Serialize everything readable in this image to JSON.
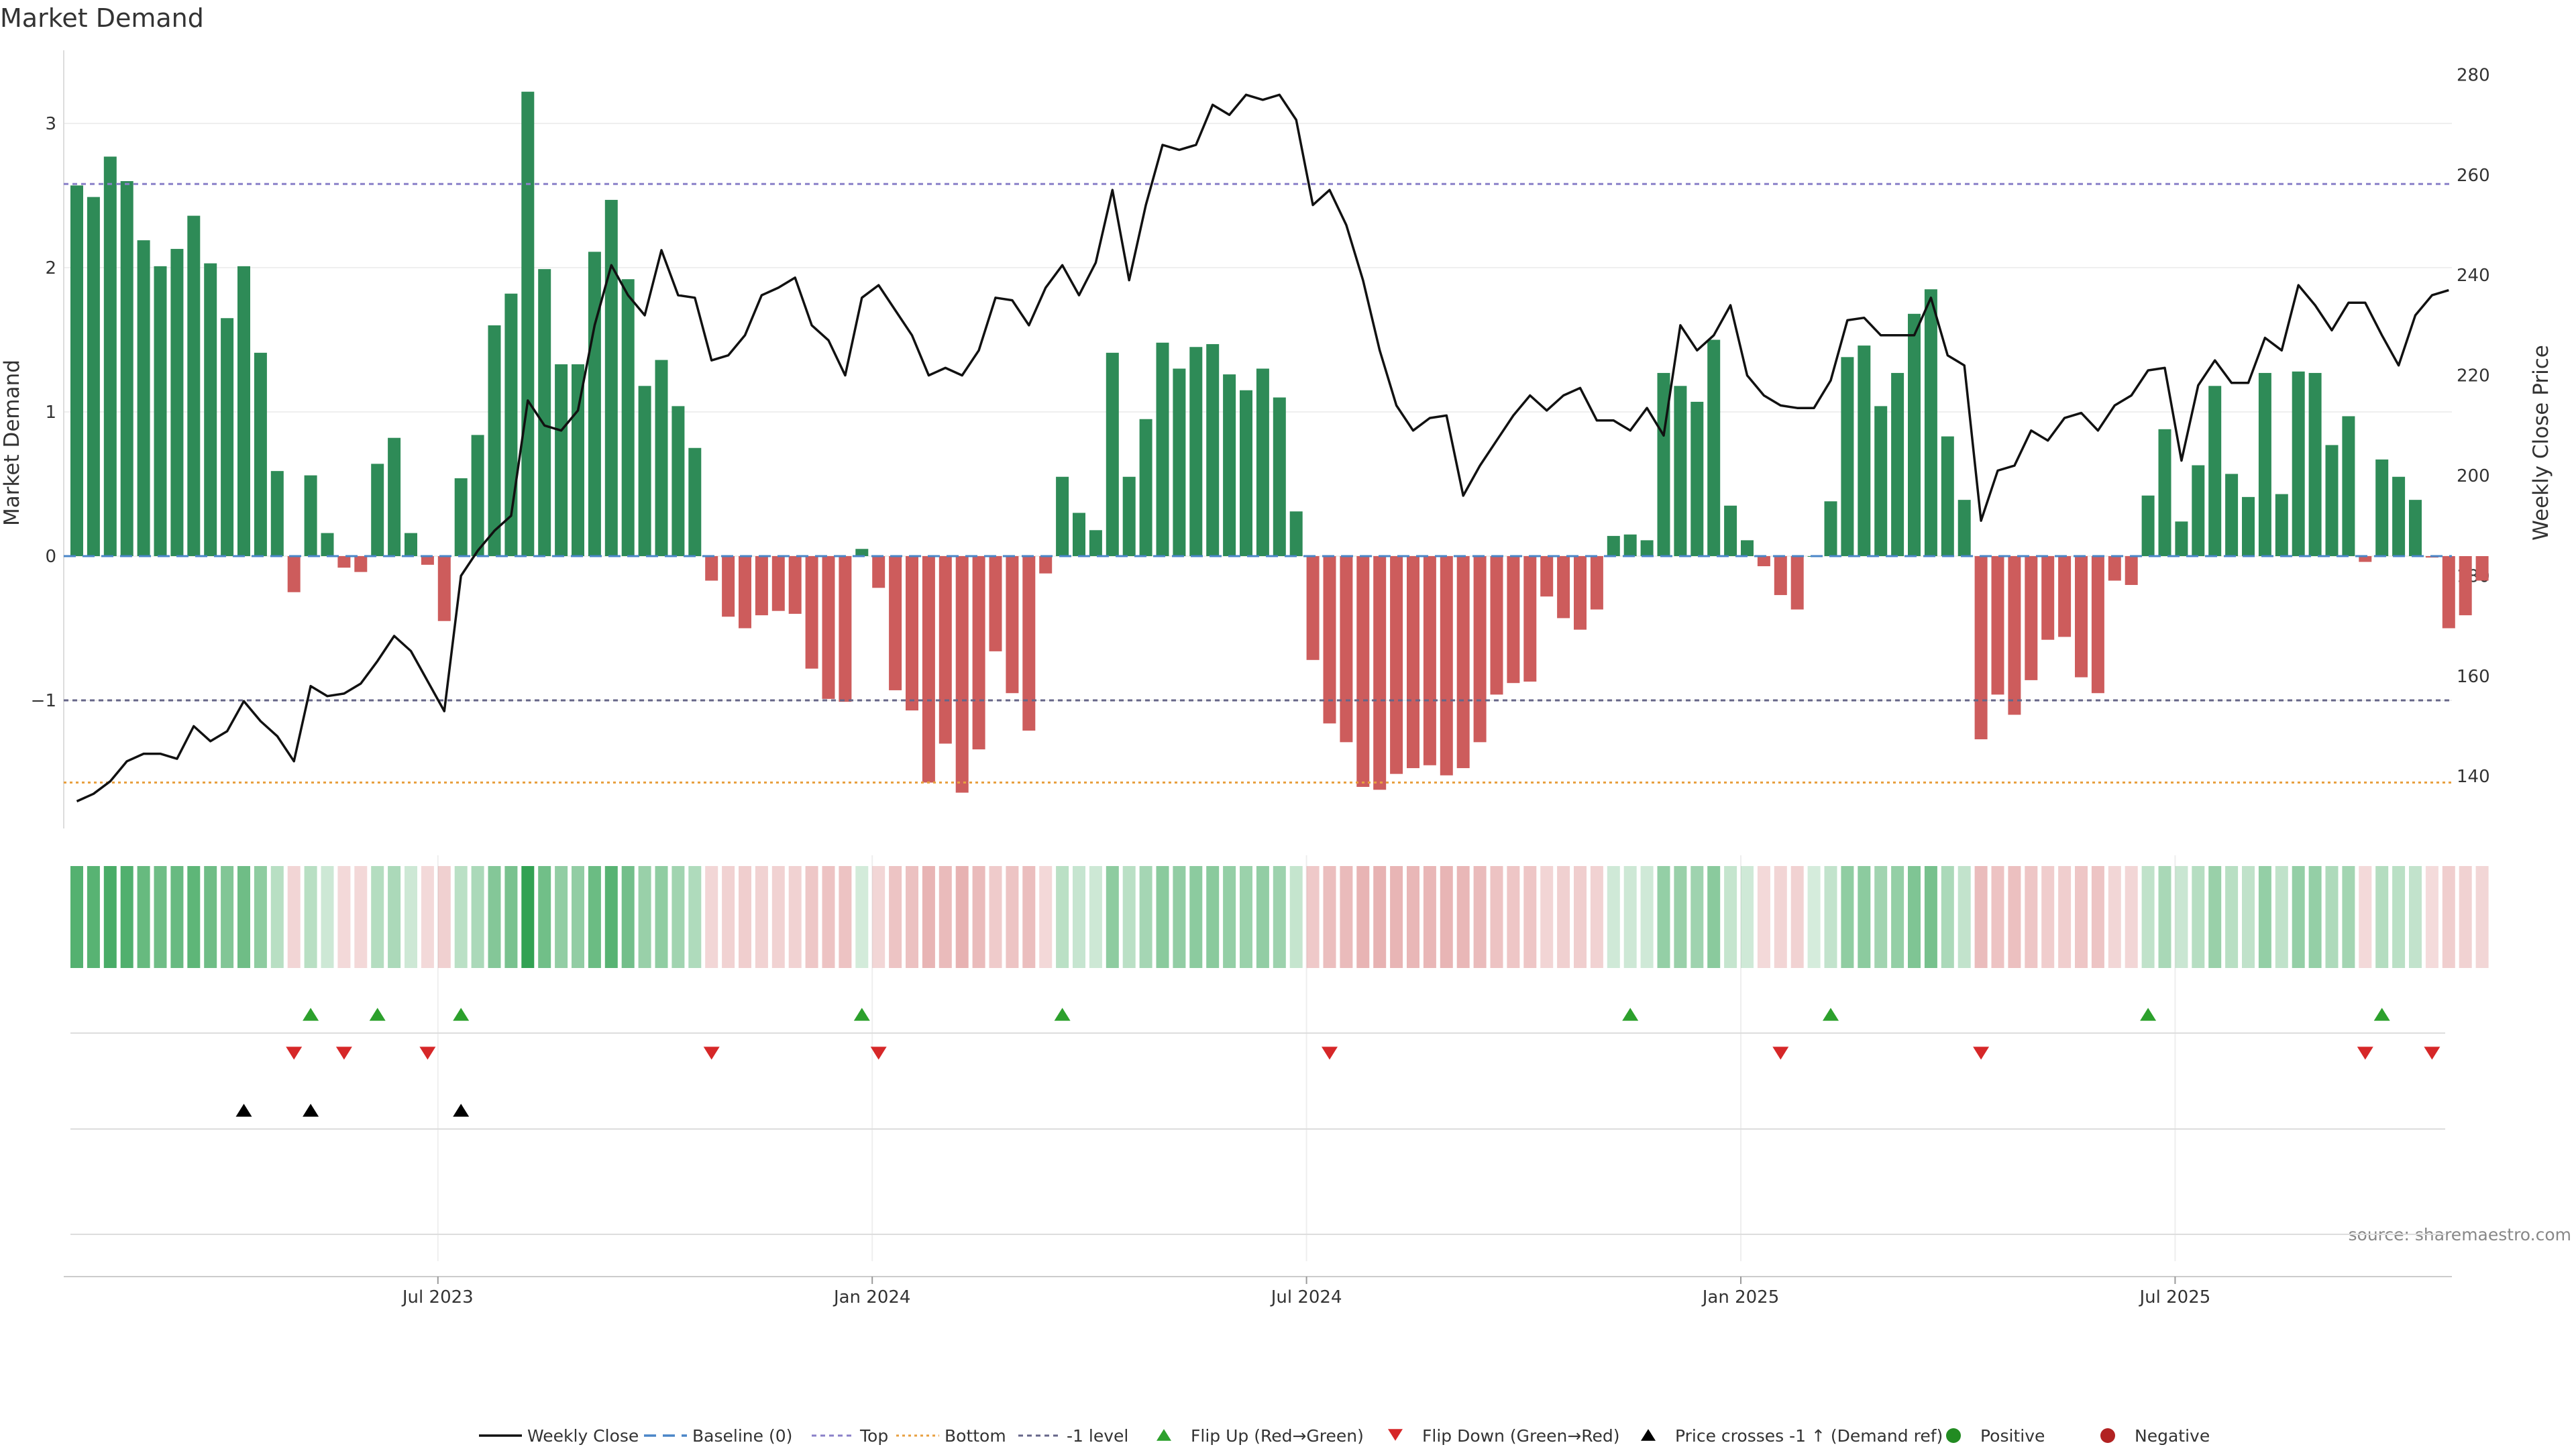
{
  "chart_data": {
    "type": "bar",
    "title": "Market Demand",
    "ylabel": "Market Demand",
    "y2label": "Weekly Close Price",
    "ylim": [
      -1.9,
      3.5
    ],
    "y2lim": [
      128,
      285
    ],
    "yticks": [
      -1,
      0,
      1,
      2,
      3
    ],
    "y2ticks": [
      140,
      160,
      180,
      200,
      220,
      240,
      260,
      280
    ],
    "x_date_ticks": [
      "Jul 2023",
      "Jan 2024",
      "Jul 2024",
      "Jan 2025",
      "Jul 2025"
    ],
    "x_tick_week_index": [
      22,
      48,
      74,
      100,
      126
    ],
    "week_count": 144,
    "reference_levels": {
      "top": 2.58,
      "bottom": -1.57,
      "minus_one": -1.0,
      "baseline": 0
    },
    "series": [
      {
        "name": "Market Demand",
        "values": [
          2.57,
          2.49,
          2.77,
          2.6,
          2.19,
          2.01,
          2.13,
          2.36,
          2.03,
          1.65,
          2.01,
          1.41,
          0.59,
          -0.25,
          0.56,
          0.16,
          -0.08,
          -0.11,
          0.64,
          0.82,
          0.16,
          -0.06,
          -0.45,
          0.54,
          0.84,
          1.6,
          1.82,
          3.22,
          1.99,
          1.33,
          1.33,
          2.11,
          2.47,
          1.92,
          1.18,
          1.36,
          1.04,
          0.75,
          -0.17,
          -0.42,
          -0.5,
          -0.41,
          -0.38,
          -0.4,
          -0.78,
          -0.99,
          -1.01,
          0.05,
          -0.22,
          -0.93,
          -1.07,
          -1.57,
          -1.3,
          -1.64,
          -1.34,
          -0.66,
          -0.95,
          -1.21,
          -0.12,
          0.55,
          0.3,
          0.18,
          1.41,
          0.55,
          0.95,
          1.48,
          1.3,
          1.45,
          1.47,
          1.26,
          1.15,
          1.3,
          1.1,
          0.31,
          -0.72,
          -1.16,
          -1.29,
          -1.6,
          -1.62,
          -1.51,
          -1.47,
          -1.45,
          -1.52,
          -1.47,
          -1.29,
          -0.96,
          -0.88,
          -0.87,
          -0.28,
          -0.43,
          -0.51,
          -0.37,
          0.14,
          0.15,
          0.11,
          1.27,
          1.18,
          1.07,
          1.5,
          0.35,
          0.11,
          -0.07,
          -0.27,
          -0.37,
          0.0,
          0.38,
          1.38,
          1.46,
          1.04,
          1.27,
          1.68,
          1.85,
          0.83,
          0.39,
          -1.27,
          -0.96,
          -1.1,
          -0.86,
          -0.58,
          -0.56,
          -0.84,
          -0.95,
          -0.17,
          -0.2,
          0.42,
          0.88,
          0.24,
          0.63,
          1.18,
          0.57,
          0.41,
          1.27,
          0.43,
          1.28,
          1.27,
          0.77,
          0.97,
          -0.04,
          0.67,
          0.55,
          0.39,
          -0.01,
          -0.5,
          -0.41,
          -0.17
        ]
      },
      {
        "name": "Weekly Close",
        "values": [
          135,
          136.5,
          139,
          143,
          144.5,
          144.5,
          143.5,
          150,
          147,
          149,
          155,
          151,
          148,
          143,
          158,
          156,
          156.5,
          158.5,
          163,
          168,
          165,
          159,
          153,
          180,
          185,
          189,
          192,
          215,
          210,
          209,
          213,
          230,
          242,
          236,
          232,
          245,
          236,
          235.5,
          223,
          224,
          228,
          236,
          237.5,
          239.5,
          230,
          227,
          220,
          235.5,
          238,
          233,
          228,
          220,
          221.5,
          220,
          225,
          235.5,
          235,
          230,
          237.5,
          242,
          236,
          242.5,
          257,
          239,
          254,
          266,
          265,
          266,
          274,
          272,
          276,
          275,
          276,
          271,
          254,
          257,
          250,
          239,
          225,
          214,
          209,
          211.5,
          212,
          196,
          202,
          207,
          212,
          216,
          213,
          216,
          217.5,
          211,
          211,
          209,
          213.5,
          208,
          230,
          225,
          228,
          234,
          220,
          216,
          214,
          213.5,
          213.5,
          219,
          231,
          231.5,
          228,
          228,
          228,
          235.5,
          224,
          222,
          191,
          201,
          202,
          209,
          207,
          211.5,
          212.5,
          209,
          214,
          216,
          221,
          221.5,
          203,
          218,
          223,
          218.5,
          218.5,
          227.5,
          225,
          238,
          234,
          229,
          234.5,
          234.5,
          228,
          222,
          232,
          236,
          237
        ]
      }
    ],
    "flip_up_weeks": [
      14,
      18,
      23,
      47,
      59,
      93,
      105,
      124,
      138
    ],
    "flip_down_weeks": [
      13,
      16,
      21,
      38,
      48,
      75,
      102,
      114,
      137,
      141
    ],
    "price_cross_weeks": [
      10,
      14,
      23
    ],
    "legend": [
      {
        "key": "weekly_close",
        "label": "Weekly Close"
      },
      {
        "key": "baseline",
        "label": "Baseline (0)"
      },
      {
        "key": "top",
        "label": "Top"
      },
      {
        "key": "bottom",
        "label": "Bottom"
      },
      {
        "key": "minus_one",
        "label": "-1 level"
      },
      {
        "key": "flip_up",
        "label": "Flip Up (Red→Green)"
      },
      {
        "key": "flip_down",
        "label": "Flip Down (Green→Red)"
      },
      {
        "key": "price_cross",
        "label": "Price crosses -1 ↑ (Demand ref)"
      },
      {
        "key": "positive",
        "label": "Positive"
      },
      {
        "key": "negative",
        "label": "Negative"
      }
    ],
    "legend_position": "bottom-center",
    "grid": true,
    "source": "source: sharemaestro.com"
  },
  "colors": {
    "positive": "#2e8b57",
    "negative": "#cd5c5c",
    "price_line": "#111111",
    "baseline": "#4a86c8",
    "top_level": "#8a80c8",
    "bottom_level": "#e8a040",
    "minus_one_level": "#666688",
    "flip_up": "#2ca02c",
    "flip_down": "#d62728",
    "price_cross": "#000000",
    "positive_dot": "#228b22",
    "negative_dot": "#b22222"
  }
}
